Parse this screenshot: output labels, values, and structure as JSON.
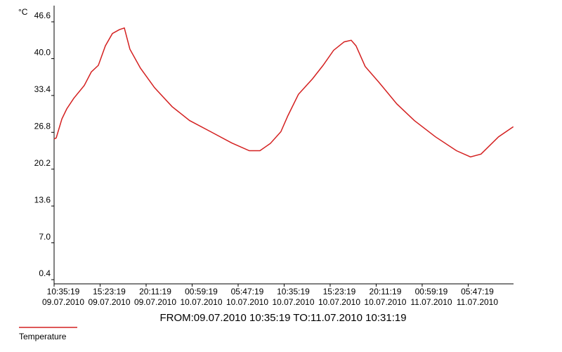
{
  "chart_data": {
    "type": "line",
    "y_label": "°C",
    "footer": "FROM:09.07.2010 10:35:19    TO:11.07.2010 10:31:19",
    "xlim": [
      0,
      47.93
    ],
    "ylim": [
      -0.35,
      49.5
    ],
    "xticks": [
      {
        "value": 0,
        "label": "10:35:19",
        "date": "09.07.2010"
      },
      {
        "value": 4.8,
        "label": "15:23:19",
        "date": "09.07.2010"
      },
      {
        "value": 9.6,
        "label": "20:11:19",
        "date": "09.07.2010"
      },
      {
        "value": 14.4,
        "label": "00:59:19",
        "date": "10.07.2010"
      },
      {
        "value": 19.2,
        "label": "05:47:19",
        "date": "10.07.2010"
      },
      {
        "value": 24,
        "label": "10:35:19",
        "date": "10.07.2010"
      },
      {
        "value": 28.8,
        "label": "15:23:19",
        "date": "10.07.2010"
      },
      {
        "value": 33.6,
        "label": "20:11:19",
        "date": "10.07.2010"
      },
      {
        "value": 38.4,
        "label": "00:59:19",
        "date": "11.07.2010"
      },
      {
        "value": 43.2,
        "label": "05:47:19",
        "date": "11.07.2010"
      }
    ],
    "yticks": [
      0.4,
      {
        "value": 7,
        "label": "7.0"
      },
      13.6,
      20.2,
      26.8,
      33.4,
      {
        "value": 40,
        "label": "40.0"
      },
      46.6
    ],
    "series": [
      {
        "name": "Temperature",
        "color": "#d42020",
        "x": [
          0,
          0.22,
          0.81,
          1.32,
          2.05,
          3.15,
          3.88,
          4.62,
          5.35,
          6.08,
          6.81,
          7.33,
          7.91,
          9.01,
          10.48,
          12.31,
          14.14,
          16.34,
          18.53,
          20.37,
          21.47,
          22.56,
          23.66,
          24.4,
          25.49,
          26.96,
          28.06,
          29.16,
          30.26,
          30.99,
          31.5,
          32.45,
          33.92,
          35.75,
          37.58,
          39.78,
          41.98,
          43.44,
          44.54,
          46.37,
          47.91
        ],
        "values": [
          25.6,
          25.8,
          29.2,
          31.0,
          32.9,
          35.2,
          37.6,
          38.8,
          42.3,
          44.5,
          45.2,
          45.5,
          41.7,
          38.3,
          34.8,
          31.4,
          28.9,
          26.9,
          24.9,
          23.5,
          23.5,
          24.8,
          26.9,
          29.8,
          33.6,
          36.4,
          38.8,
          41.5,
          43.0,
          43.3,
          42.3,
          38.6,
          35.7,
          31.9,
          28.9,
          26.0,
          23.5,
          22.4,
          22.9,
          26.0,
          27.8
        ]
      }
    ]
  }
}
